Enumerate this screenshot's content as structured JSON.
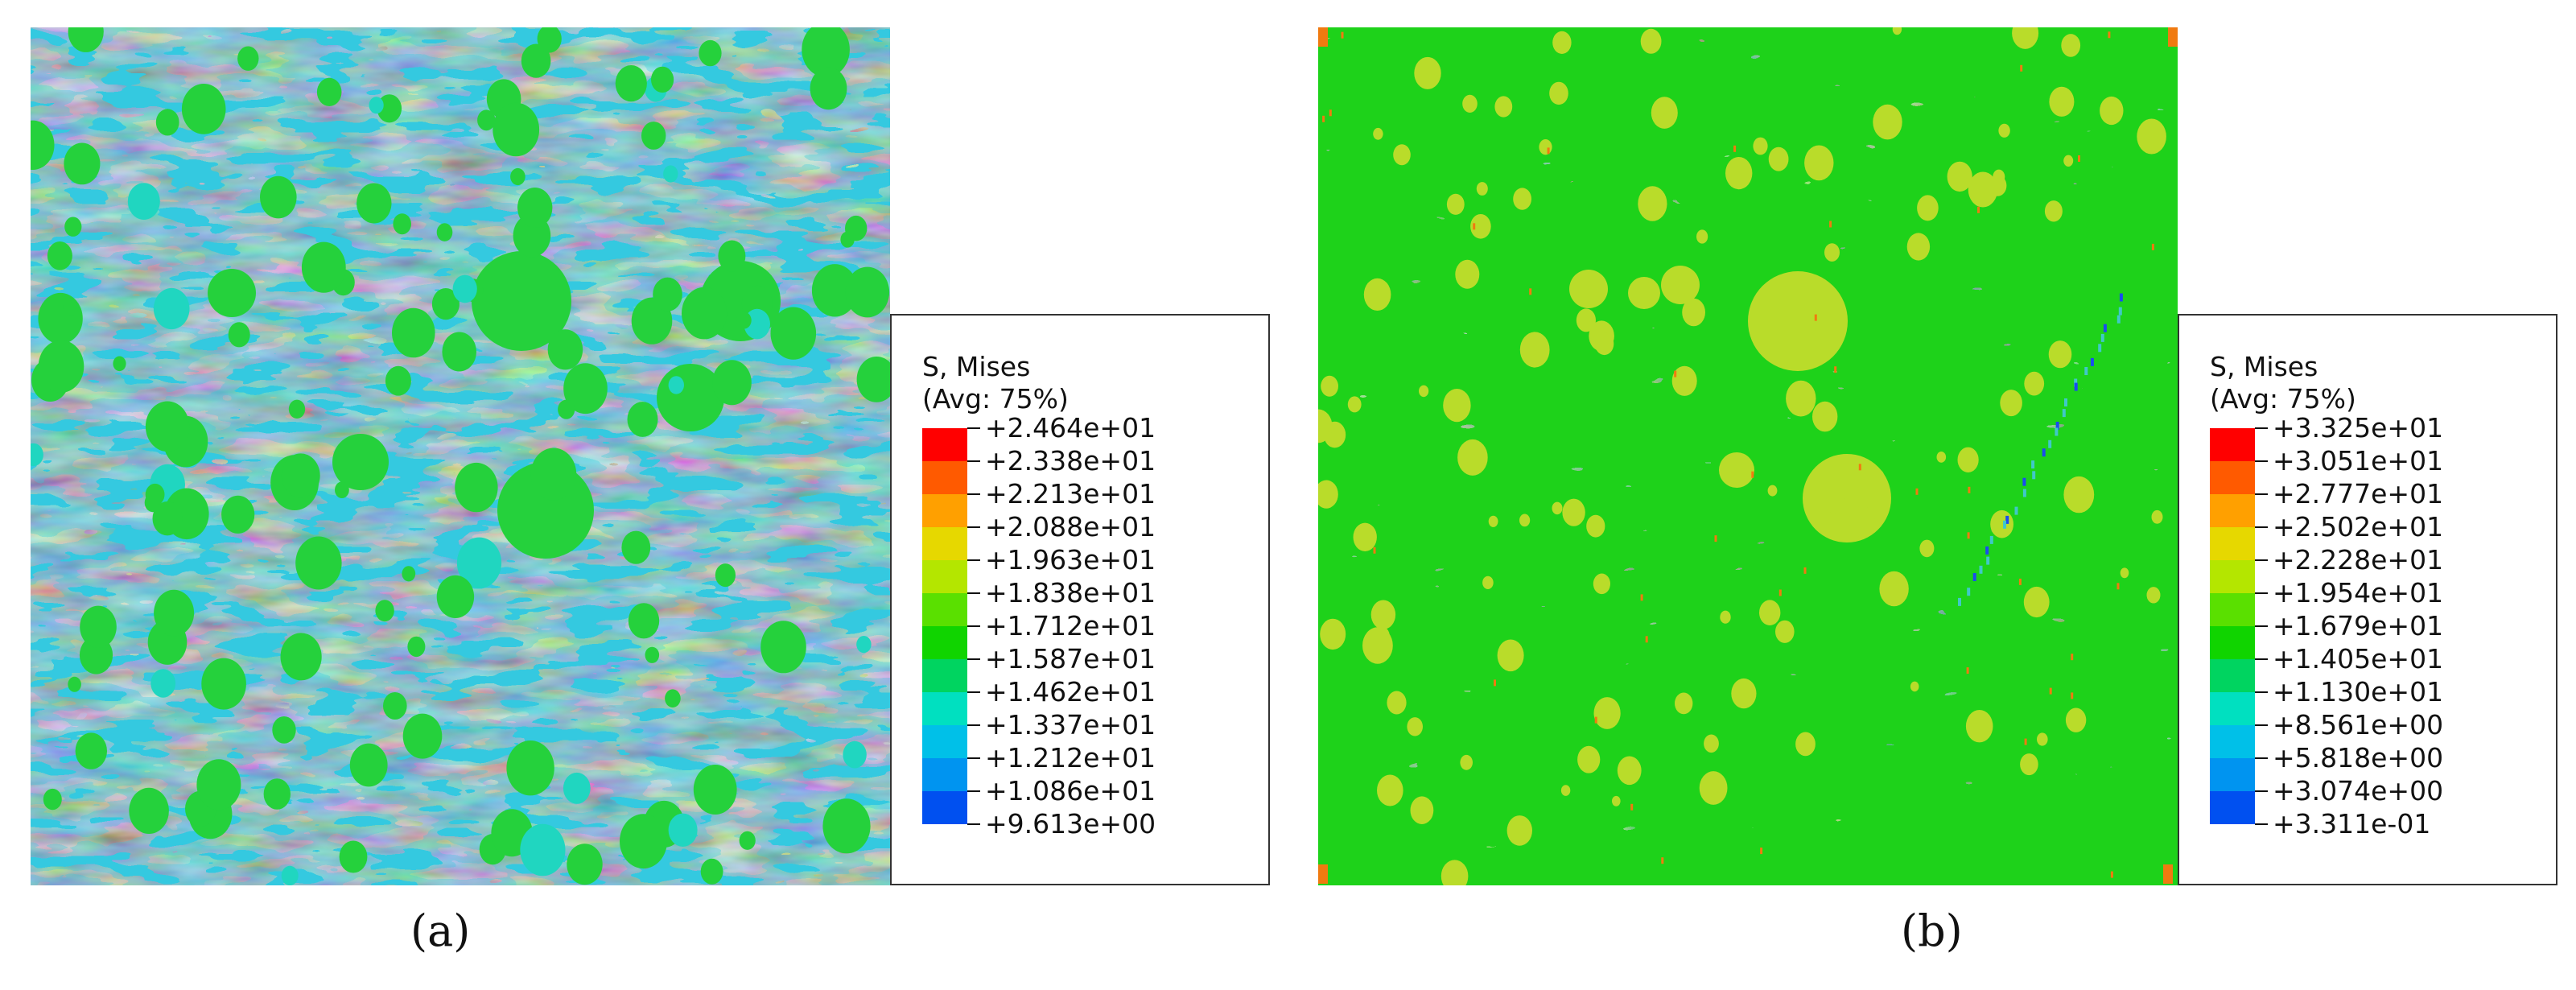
{
  "panel_a": {
    "legend": {
      "title_line1": "S, Mises",
      "title_line2": "(Avg: 75%)",
      "values": [
        "+2.464e+01",
        "+2.338e+01",
        "+2.213e+01",
        "+2.088e+01",
        "+1.963e+01",
        "+1.838e+01",
        "+1.712e+01",
        "+1.587e+01",
        "+1.462e+01",
        "+1.337e+01",
        "+1.212e+01",
        "+1.086e+01",
        "+9.613e+00"
      ]
    },
    "caption": "(a)"
  },
  "panel_b": {
    "legend": {
      "title_line1": "S, Mises",
      "title_line2": "(Avg: 75%)",
      "values": [
        "+3.325e+01",
        "+3.051e+01",
        "+2.777e+01",
        "+2.502e+01",
        "+2.228e+01",
        "+1.954e+01",
        "+1.679e+01",
        "+1.405e+01",
        "+1.130e+01",
        "+8.561e+00",
        "+5.818e+00",
        "+3.074e+00",
        "+3.311e-01"
      ]
    },
    "caption": "(b)"
  },
  "colormap": [
    "#ff0000",
    "#ff5a00",
    "#ffa000",
    "#e6d800",
    "#b4e600",
    "#5ae000",
    "#10d400",
    "#00d460",
    "#00e0c0",
    "#00c0e8",
    "#0094f0",
    "#0050f0",
    "#0000f0"
  ],
  "field_colors": {
    "a_base": "#34c9e0",
    "a_dark": "#1a74ee",
    "a_green": "#25d13c",
    "a_cyan": "#20d6c0",
    "b_base": "#1ed21a",
    "b_spot": "#b9dc2a",
    "b_hot": "#f07a10"
  }
}
